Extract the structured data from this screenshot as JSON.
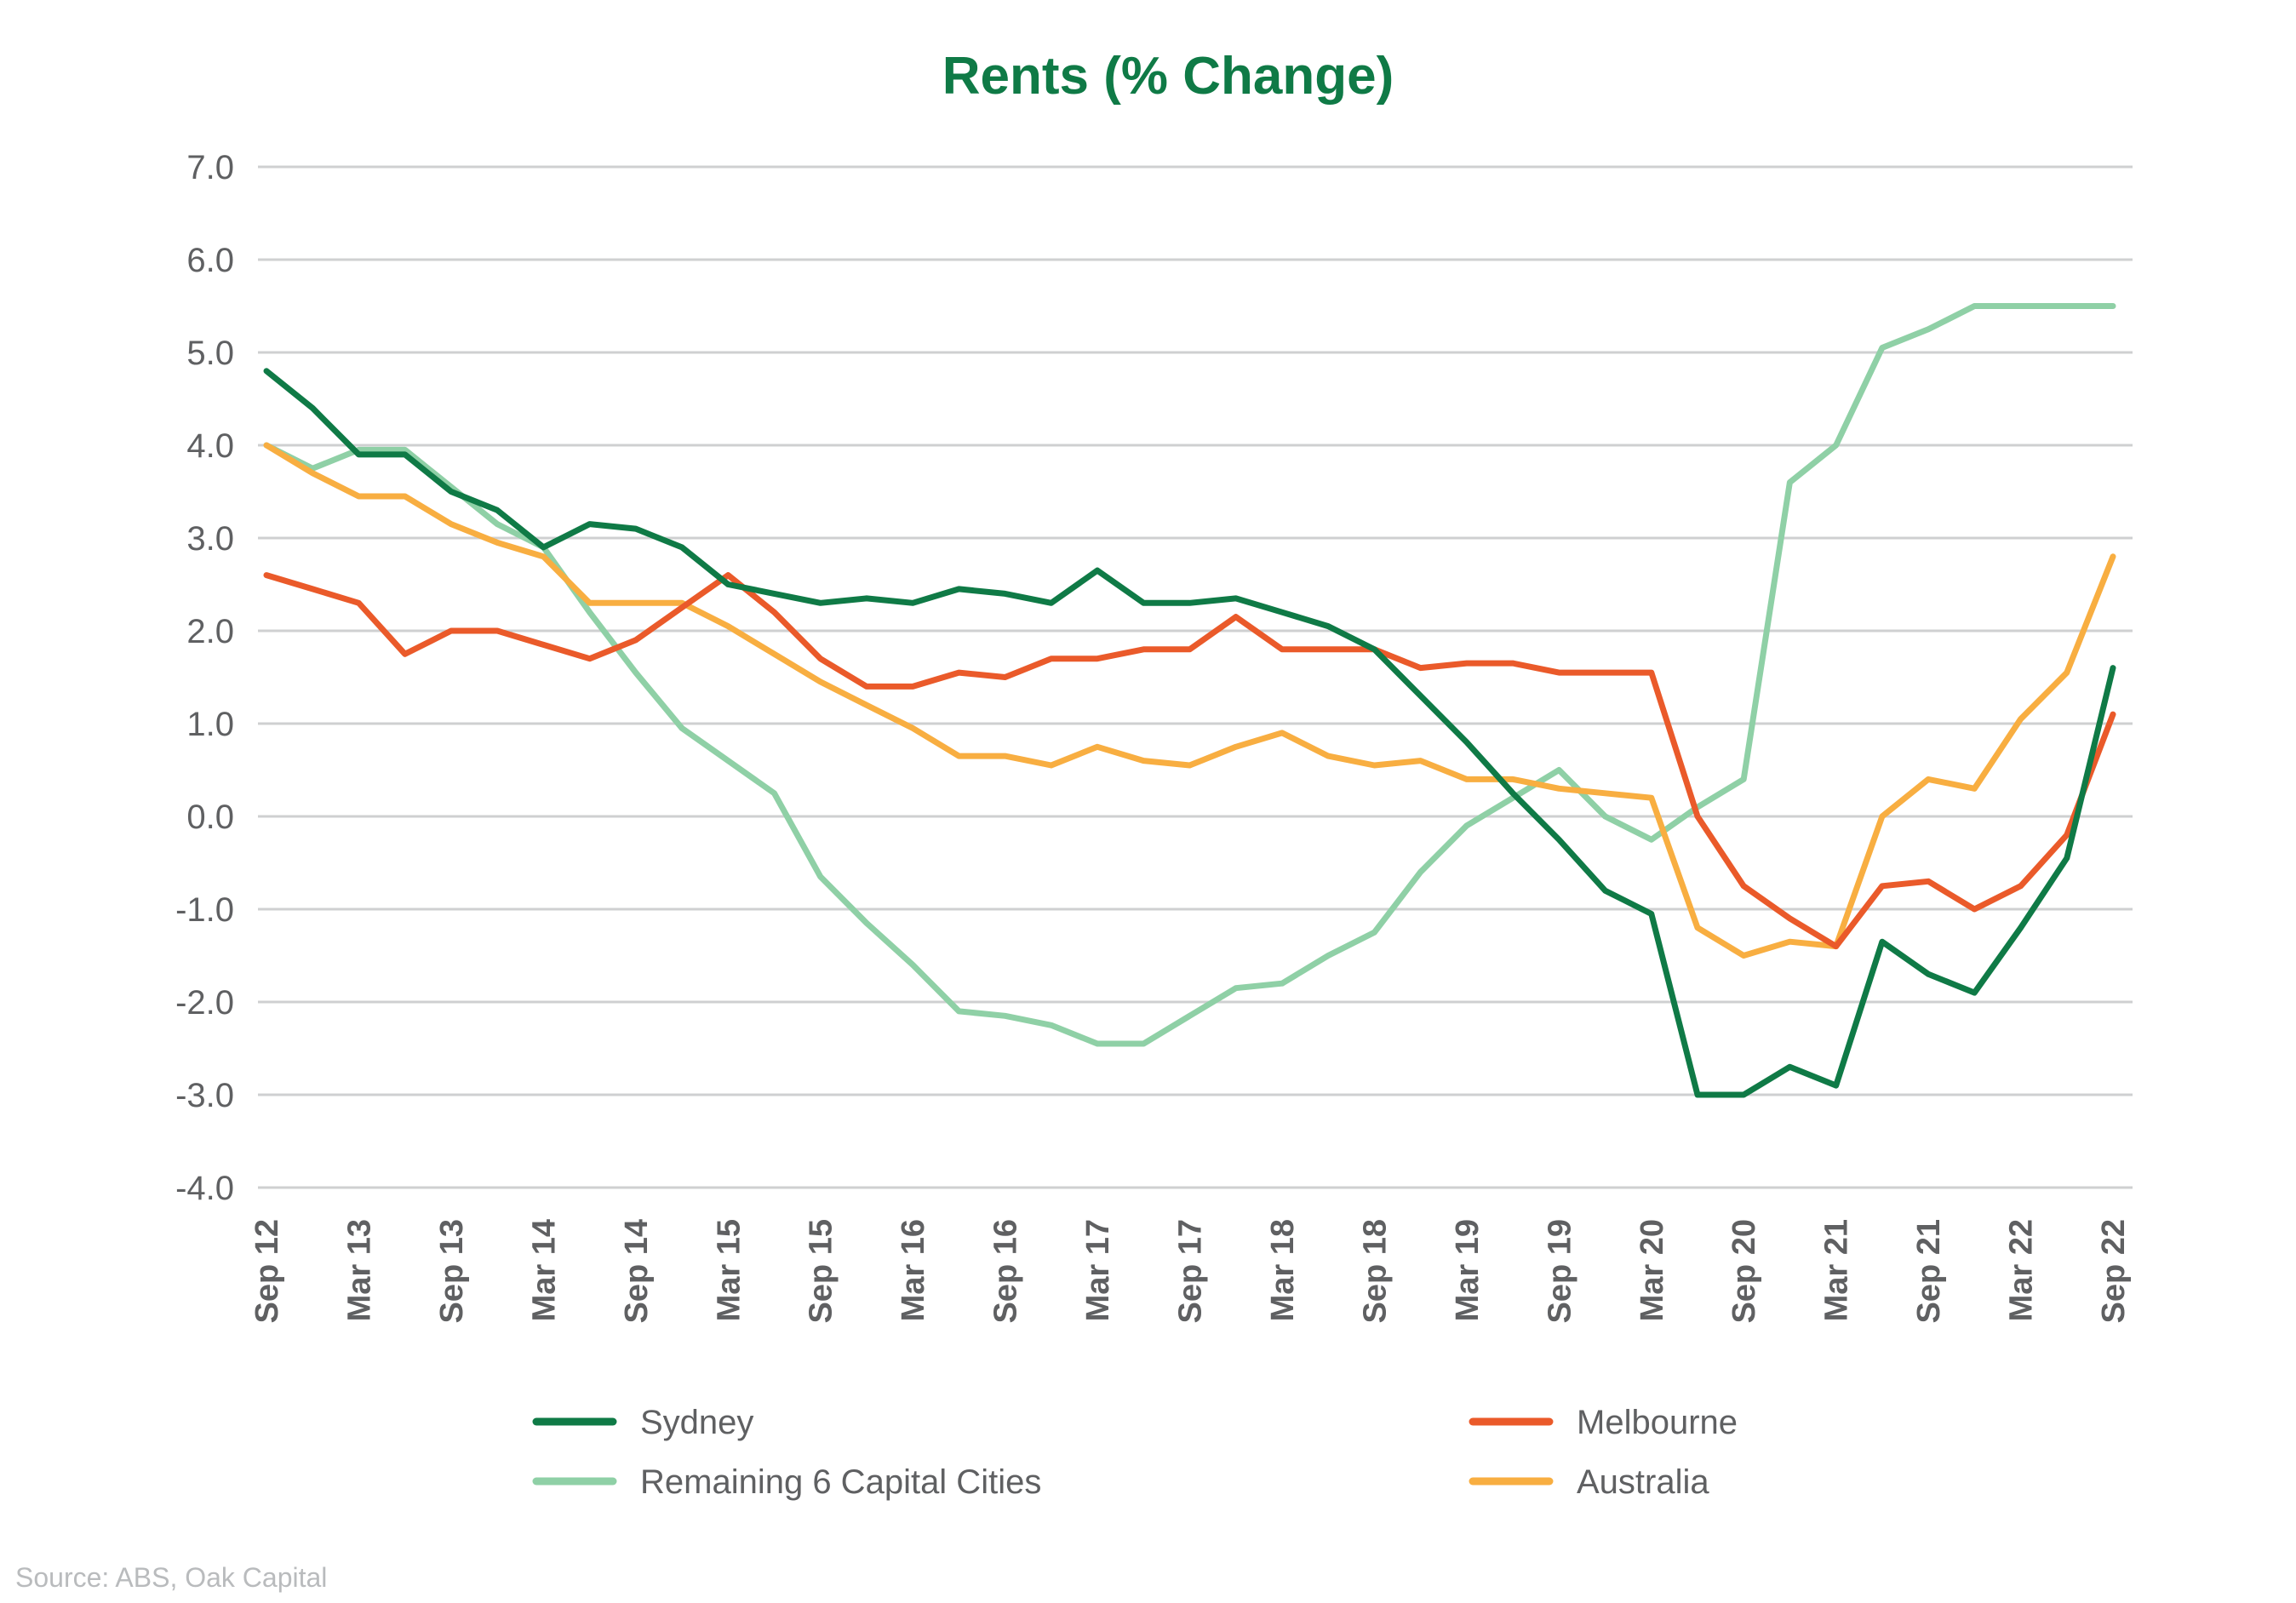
{
  "chart_data": {
    "type": "line",
    "title": "Rents (% Change)",
    "xlabel": "",
    "ylabel": "",
    "ylim": [
      -4.0,
      7.0
    ],
    "yticks": [
      "7.0",
      "6.0",
      "5.0",
      "4.0",
      "3.0",
      "2.0",
      "1.0",
      "0.0",
      "-1.0",
      "-2.0",
      "-3.0",
      "-4.0"
    ],
    "xticks": [
      "Sep 12",
      "Mar 13",
      "Sep 13",
      "Mar 14",
      "Sep 14",
      "Mar 15",
      "Sep 15",
      "Mar 16",
      "Sep 16",
      "Mar 17",
      "Sep 17",
      "Mar 18",
      "Sep 18",
      "Mar 19",
      "Sep 19",
      "Mar 20",
      "Sep 20",
      "Mar 21",
      "Sep 21",
      "Mar 22",
      "Sep 22"
    ],
    "categories": [
      "Sep 12",
      "Dec 12",
      "Mar 13",
      "Jun 13",
      "Sep 13",
      "Dec 13",
      "Mar 14",
      "Jun 14",
      "Sep 14",
      "Dec 14",
      "Mar 15",
      "Jun 15",
      "Sep 15",
      "Dec 15",
      "Mar 16",
      "Jun 16",
      "Sep 16",
      "Dec 16",
      "Mar 17",
      "Jun 17",
      "Sep 17",
      "Dec 17",
      "Mar 18",
      "Jun 18",
      "Sep 18",
      "Dec 18",
      "Mar 19",
      "Jun 19",
      "Sep 19",
      "Dec 19",
      "Mar 20",
      "Jun 20",
      "Sep 20",
      "Dec 20",
      "Mar 21",
      "Jun 21",
      "Sep 21",
      "Dec 21",
      "Mar 22",
      "Jun 22",
      "Sep 22"
    ],
    "grid": true,
    "legend_position": "bottom",
    "series": [
      {
        "name": "Sydney",
        "color": "#0f7a46",
        "values": [
          4.8,
          4.4,
          3.9,
          3.9,
          3.5,
          3.3,
          2.9,
          3.15,
          3.1,
          2.9,
          2.5,
          2.4,
          2.3,
          2.35,
          2.3,
          2.45,
          2.4,
          2.3,
          2.65,
          2.3,
          2.3,
          2.35,
          2.2,
          2.05,
          1.8,
          1.3,
          0.8,
          0.25,
          -0.25,
          -0.8,
          -1.05,
          -3.0,
          -3.0,
          -2.7,
          -2.9,
          -1.35,
          -1.7,
          -1.9,
          -1.2,
          -0.45,
          1.6
        ]
      },
      {
        "name": "Melbourne",
        "color": "#ea5a2a",
        "values": [
          2.6,
          2.45,
          2.3,
          1.75,
          2.0,
          2.0,
          1.85,
          1.7,
          1.9,
          2.25,
          2.6,
          2.2,
          1.7,
          1.4,
          1.4,
          1.55,
          1.5,
          1.7,
          1.7,
          1.8,
          1.8,
          2.15,
          1.8,
          1.8,
          1.8,
          1.6,
          1.65,
          1.65,
          1.55,
          1.55,
          1.55,
          0.0,
          -0.75,
          -1.1,
          -1.4,
          -0.75,
          -0.7,
          -1.0,
          -0.75,
          -0.2,
          1.1
        ]
      },
      {
        "name": "Remaining 6 Capital Cities",
        "color": "#8fd0a6",
        "values": [
          4.0,
          3.75,
          3.95,
          3.95,
          3.55,
          3.15,
          2.9,
          2.2,
          1.55,
          0.95,
          0.6,
          0.25,
          -0.65,
          -1.15,
          -1.6,
          -2.1,
          -2.15,
          -2.25,
          -2.45,
          -2.45,
          -2.15,
          -1.85,
          -1.8,
          -1.5,
          -1.25,
          -0.6,
          -0.1,
          0.2,
          0.5,
          0.0,
          -0.25,
          0.1,
          0.4,
          3.6,
          4.0,
          5.05,
          5.25,
          5.5,
          5.5,
          5.5,
          5.5
        ]
      },
      {
        "name": "Australia",
        "color": "#f8ae41",
        "values": [
          4.0,
          3.7,
          3.45,
          3.45,
          3.15,
          2.95,
          2.8,
          2.3,
          2.3,
          2.3,
          2.05,
          1.75,
          1.45,
          1.2,
          0.95,
          0.65,
          0.65,
          0.55,
          0.75,
          0.6,
          0.55,
          0.75,
          0.9,
          0.65,
          0.55,
          0.6,
          0.4,
          0.4,
          0.3,
          0.25,
          0.2,
          -1.2,
          -1.5,
          -1.35,
          -1.4,
          0.0,
          0.4,
          0.3,
          1.05,
          1.55,
          2.8
        ]
      }
    ]
  },
  "legend": {
    "items": [
      "Sydney",
      "Melbourne",
      "Remaining 6 Capital Cities",
      "Australia"
    ]
  },
  "footer": {
    "source": "Source: ABS, Oak Capital"
  },
  "colors": {
    "title": "#0f7a46",
    "grid": "#cfd0d1",
    "text": "#5f6062",
    "source": "#b9bbbd"
  }
}
